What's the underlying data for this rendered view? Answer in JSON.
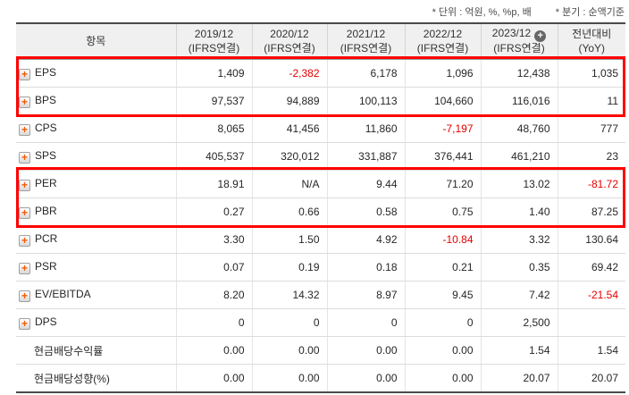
{
  "annotations": {
    "unit": "* 단위 : 억원, %, %p, 배",
    "basis": "* 분기 : 순액기준"
  },
  "icons": {
    "row_expand_glyph": "+",
    "column_expand_glyph": "+"
  },
  "colors": {
    "negative_text": "#e60000",
    "highlight_border": "#ff0000",
    "plus_icon": "#f25b05",
    "header_bg": "#f0f0f0"
  },
  "table": {
    "item_header": "항목",
    "columns": [
      {
        "key": "2019-12",
        "period": "2019/12",
        "standard": "(IFRS연결)"
      },
      {
        "key": "2020-12",
        "period": "2020/12",
        "standard": "(IFRS연결)"
      },
      {
        "key": "2021-12",
        "period": "2021/12",
        "standard": "(IFRS연결)"
      },
      {
        "key": "2022-12",
        "period": "2022/12",
        "standard": "(IFRS연결)"
      },
      {
        "key": "2023-12",
        "period": "2023/12",
        "standard": "(IFRS연결)",
        "has_expand_icon": true
      },
      {
        "key": "yoy",
        "period": "전년대비",
        "standard": "(YoY)"
      }
    ],
    "rows": [
      {
        "key": "eps",
        "label": "EPS",
        "has_plus_icon": true,
        "highlighted": true,
        "values": [
          "1,409",
          "-2,382",
          "6,178",
          "1,096",
          "12,438",
          "1,035"
        ]
      },
      {
        "key": "bps",
        "label": "BPS",
        "has_plus_icon": true,
        "highlighted": true,
        "values": [
          "97,537",
          "94,889",
          "100,113",
          "104,660",
          "116,016",
          "11"
        ]
      },
      {
        "key": "cps",
        "label": "CPS",
        "has_plus_icon": true,
        "values": [
          "8,065",
          "41,456",
          "11,860",
          "-7,197",
          "48,760",
          "777"
        ]
      },
      {
        "key": "sps",
        "label": "SPS",
        "has_plus_icon": true,
        "values": [
          "405,537",
          "320,012",
          "331,887",
          "376,441",
          "461,210",
          "23"
        ]
      },
      {
        "key": "per",
        "label": "PER",
        "has_plus_icon": true,
        "highlighted": true,
        "values": [
          "18.91",
          "N/A",
          "9.44",
          "71.20",
          "13.02",
          "-81.72"
        ]
      },
      {
        "key": "pbr",
        "label": "PBR",
        "has_plus_icon": true,
        "highlighted": true,
        "values": [
          "0.27",
          "0.66",
          "0.58",
          "0.75",
          "1.40",
          "87.25"
        ]
      },
      {
        "key": "pcr",
        "label": "PCR",
        "has_plus_icon": true,
        "values": [
          "3.30",
          "1.50",
          "4.92",
          "-10.84",
          "3.32",
          "130.64"
        ]
      },
      {
        "key": "psr",
        "label": "PSR",
        "has_plus_icon": true,
        "values": [
          "0.07",
          "0.19",
          "0.18",
          "0.21",
          "0.35",
          "69.42"
        ]
      },
      {
        "key": "ev-ebitda",
        "label": "EV/EBITDA",
        "has_plus_icon": true,
        "values": [
          "8.20",
          "14.32",
          "8.97",
          "9.45",
          "7.42",
          "-21.54"
        ]
      },
      {
        "key": "dps",
        "label": "DPS",
        "has_plus_icon": true,
        "values": [
          "0",
          "0",
          "0",
          "0",
          "2,500",
          ""
        ]
      },
      {
        "key": "cash-dividend-yield",
        "label": "현금배당수익률",
        "has_plus_icon": false,
        "values": [
          "0.00",
          "0.00",
          "0.00",
          "0.00",
          "1.54",
          "1.54"
        ]
      },
      {
        "key": "cash-payout-ratio",
        "label": "현금배당성향(%)",
        "has_plus_icon": false,
        "values": [
          "0.00",
          "0.00",
          "0.00",
          "0.00",
          "20.07",
          "20.07"
        ]
      }
    ]
  }
}
